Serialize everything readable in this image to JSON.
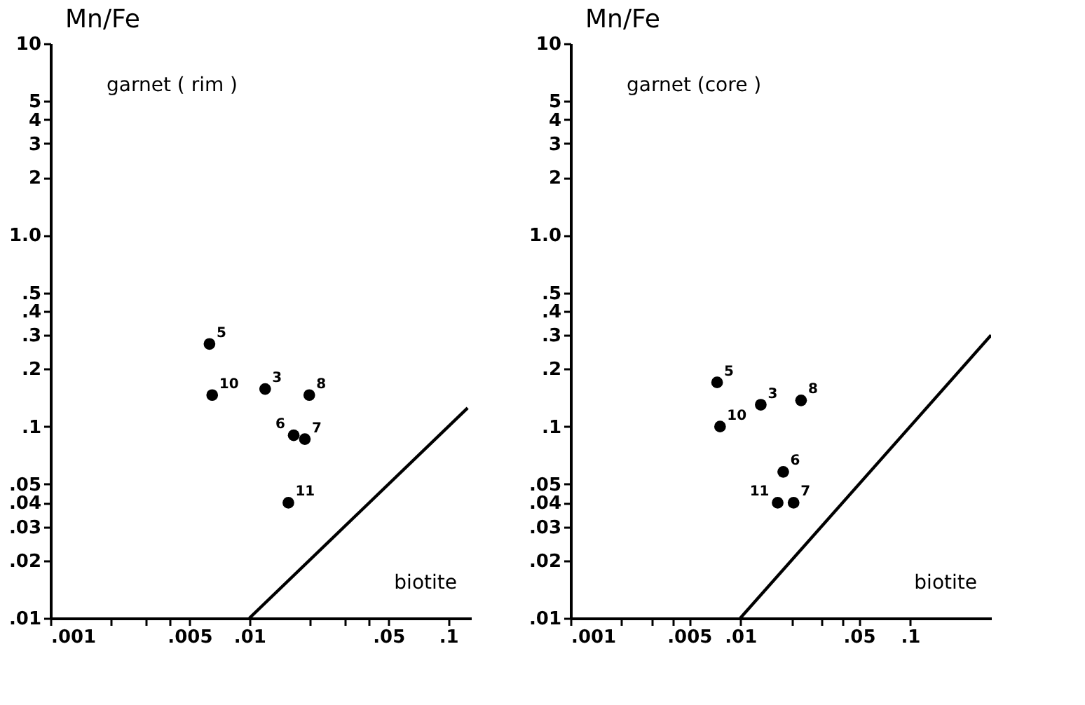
{
  "chart_data": [
    {
      "type": "scatter",
      "ylabel": "Mn/Fe",
      "log": "xy",
      "grid": false,
      "xlim": [
        0.001,
        0.13
      ],
      "ylim": [
        0.01,
        10
      ],
      "xticks": [
        {
          "value": 0.001,
          "label": ".001"
        },
        {
          "value": 0.002,
          "label": null
        },
        {
          "value": 0.003,
          "label": null
        },
        {
          "value": 0.004,
          "label": null
        },
        {
          "value": 0.005,
          "label": ".005"
        },
        {
          "value": 0.01,
          "label": ".01"
        },
        {
          "value": 0.02,
          "label": null
        },
        {
          "value": 0.03,
          "label": null
        },
        {
          "value": 0.04,
          "label": null
        },
        {
          "value": 0.05,
          "label": ".05"
        },
        {
          "value": 0.1,
          "label": ".1"
        }
      ],
      "yticks": [
        {
          "value": 0.01,
          "label": ".01"
        },
        {
          "value": 0.02,
          "label": ".02"
        },
        {
          "value": 0.03,
          "label": ".03"
        },
        {
          "value": 0.04,
          "label": ".04"
        },
        {
          "value": 0.05,
          "label": ".05"
        },
        {
          "value": 0.1,
          "label": ".1"
        },
        {
          "value": 0.2,
          "label": ".2"
        },
        {
          "value": 0.3,
          "label": ".3"
        },
        {
          "value": 0.4,
          "label": ".4"
        },
        {
          "value": 0.5,
          "label": ".5"
        },
        {
          "value": 1,
          "label": "1.0"
        },
        2,
        3,
        4,
        5,
        10
      ],
      "series": [
        {
          "type": "scatter",
          "marker": "circle",
          "color": "#000000",
          "x": [
            0.0063,
            0.0065,
            0.012,
            0.02,
            0.0167,
            0.019,
            0.0157
          ],
          "values": [
            0.27,
            0.146,
            0.157,
            0.146,
            0.09,
            0.086,
            0.04
          ]
        },
        {
          "type": "line",
          "marker": "none",
          "line_style": "solid",
          "color": "#000000",
          "x": [
            0.01,
            0.125
          ],
          "values": [
            0.01,
            0.125
          ]
        }
      ],
      "annotations": [
        "garnet ( rim )",
        "biotite",
        {
          "text": "5",
          "x": 0.0063,
          "y": 0.27
        },
        {
          "text": "10",
          "x": 0.0065,
          "y": 0.146
        },
        {
          "text": "3",
          "x": 0.012,
          "y": 0.157
        },
        {
          "text": "8",
          "x": 0.02,
          "y": 0.146
        },
        {
          "text": "6",
          "x": 0.0167,
          "y": 0.09
        },
        {
          "text": "7",
          "x": 0.019,
          "y": 0.086
        },
        {
          "text": "11",
          "x": 0.0157,
          "y": 0.04
        }
      ]
    },
    {
      "type": "scatter",
      "ylabel": "Mn/Fe",
      "log": "xy",
      "grid": false,
      "xlim": [
        0.001,
        0.3
      ],
      "ylim": [
        0.01,
        10
      ],
      "xticks": [
        {
          "value": 0.001,
          "label": ".001"
        },
        {
          "value": 0.002,
          "label": null
        },
        {
          "value": 0.003,
          "label": null
        },
        {
          "value": 0.004,
          "label": null
        },
        {
          "value": 0.005,
          "label": ".005"
        },
        {
          "value": 0.01,
          "label": ".01"
        },
        {
          "value": 0.02,
          "label": null
        },
        {
          "value": 0.03,
          "label": null
        },
        {
          "value": 0.04,
          "label": null
        },
        {
          "value": 0.05,
          "label": ".05"
        },
        {
          "value": 0.1,
          "label": ".1"
        }
      ],
      "yticks": [
        {
          "value": 0.01,
          "label": ".01"
        },
        {
          "value": 0.02,
          "label": ".02"
        },
        {
          "value": 0.03,
          "label": ".03"
        },
        {
          "value": 0.04,
          "label": ".04"
        },
        {
          "value": 0.05,
          "label": ".05"
        },
        {
          "value": 0.1,
          "label": ".1"
        },
        {
          "value": 0.2,
          "label": ".2"
        },
        {
          "value": 0.3,
          "label": ".3"
        },
        {
          "value": 0.4,
          "label": ".4"
        },
        {
          "value": 0.5,
          "label": ".5"
        },
        {
          "value": 1,
          "label": "1.0"
        },
        2,
        3,
        4,
        5,
        10
      ],
      "series": [
        {
          "type": "scatter",
          "marker": "circle",
          "color": "#000000",
          "x": [
            0.0073,
            0.0076,
            0.0132,
            0.0228,
            0.0179,
            0.0166,
            0.0206
          ],
          "values": [
            0.17,
            0.1,
            0.13,
            0.137,
            0.058,
            0.04,
            0.04
          ]
        },
        {
          "type": "line",
          "marker": "none",
          "line_style": "solid",
          "color": "#000000",
          "x": [
            0.01,
            0.3
          ],
          "values": [
            0.01,
            0.3
          ]
        }
      ],
      "annotations": [
        "garnet (core )",
        "biotite",
        {
          "text": "5",
          "x": 0.0073,
          "y": 0.17
        },
        {
          "text": "10",
          "x": 0.0076,
          "y": 0.1
        },
        {
          "text": "3",
          "x": 0.0132,
          "y": 0.13
        },
        {
          "text": "8",
          "x": 0.0228,
          "y": 0.137
        },
        {
          "text": "6",
          "x": 0.0179,
          "y": 0.058
        },
        {
          "text": "11",
          "x": 0.0166,
          "y": 0.04
        },
        {
          "text": "7",
          "x": 0.0206,
          "y": 0.04
        }
      ]
    }
  ]
}
